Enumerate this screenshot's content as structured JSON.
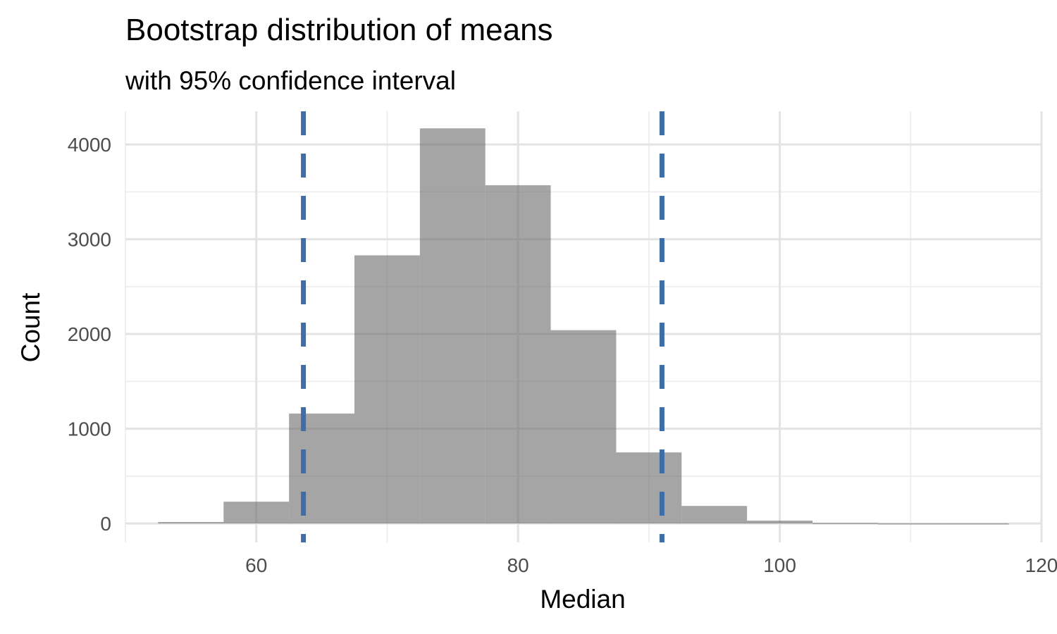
{
  "chart_data": {
    "type": "bar",
    "title": "Bootstrap distribution of means",
    "subtitle": "with 95% confidence interval",
    "xlabel": "Median",
    "ylabel": "Count",
    "xlim": [
      50,
      120
    ],
    "ylim": [
      -200,
      4350
    ],
    "x_ticks": [
      60,
      80,
      100,
      120
    ],
    "y_ticks": [
      0,
      1000,
      2000,
      3000,
      4000
    ],
    "bin_width": 5,
    "bins": [
      {
        "center": 55,
        "count": 15
      },
      {
        "center": 60,
        "count": 230
      },
      {
        "center": 65,
        "count": 1160
      },
      {
        "center": 70,
        "count": 2830
      },
      {
        "center": 75,
        "count": 4170
      },
      {
        "center": 80,
        "count": 3570
      },
      {
        "center": 85,
        "count": 2040
      },
      {
        "center": 90,
        "count": 750
      },
      {
        "center": 95,
        "count": 185
      },
      {
        "center": 100,
        "count": 30
      },
      {
        "center": 105,
        "count": 5
      },
      {
        "center": 110,
        "count": 1
      },
      {
        "center": 115,
        "count": 1
      }
    ],
    "ci_lines": [
      63.6,
      91.0
    ],
    "bar_color": "#a3a3a3",
    "ci_color": "#3d6ea8",
    "grid": true
  }
}
